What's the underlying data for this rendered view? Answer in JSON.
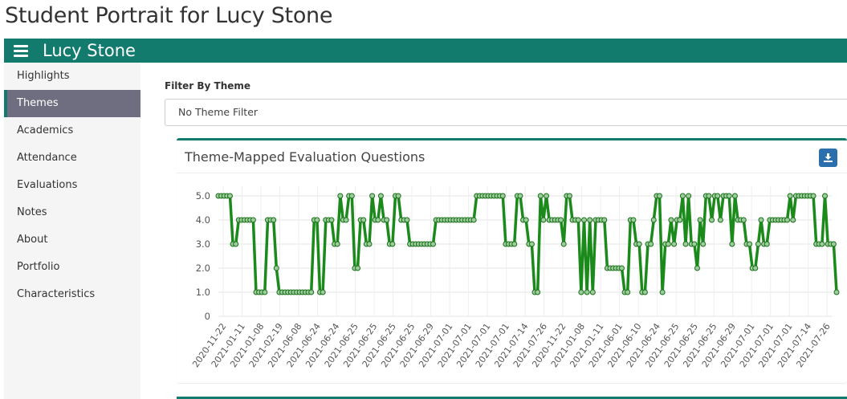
{
  "page": {
    "title": "Student Portrait for Lucy Stone"
  },
  "topbar": {
    "student_name": "Lucy Stone",
    "menu_icon": "hamburger-icon",
    "color": "#127b6e"
  },
  "sidebar": {
    "items": [
      {
        "label": "Highlights",
        "active": false
      },
      {
        "label": "Themes",
        "active": true
      },
      {
        "label": "Academics",
        "active": false
      },
      {
        "label": "Attendance",
        "active": false
      },
      {
        "label": "Evaluations",
        "active": false
      },
      {
        "label": "Notes",
        "active": false
      },
      {
        "label": "About",
        "active": false
      },
      {
        "label": "Portfolio",
        "active": false
      },
      {
        "label": "Characteristics",
        "active": false
      }
    ]
  },
  "filter": {
    "label": "Filter By Theme",
    "selected": "No Theme Filter"
  },
  "panel": {
    "title": "Theme-Mapped Evaluation Questions",
    "download_icon": "download-icon"
  },
  "chart_data": {
    "type": "line",
    "title": "",
    "xlabel": "",
    "ylabel": "",
    "ylim": [
      0,
      5.4
    ],
    "yticks": [
      "0",
      "1.0",
      "2.0",
      "3.0",
      "4.0",
      "5.0"
    ],
    "line_color": "#1a8a1a",
    "x_tick_labels": [
      "2020-11-22",
      "2021-01-11",
      "2021-01-08",
      "2021-02-19",
      "2021-06-08",
      "2021-06-24",
      "2021-06-24",
      "2021-06-25",
      "2021-06-25",
      "2021-06-25",
      "2021-06-25",
      "2021-06-29",
      "2021-07-01",
      "2021-07-01",
      "2021-07-01",
      "2021-07-01",
      "2021-07-14",
      "2021-07-26",
      "2020-11-22",
      "2021-01-08",
      "2021-01-11",
      "2021-06-01",
      "2021-06-10",
      "2021-06-24",
      "2021-06-25",
      "2021-06-25",
      "2021-06-25",
      "2021-06-29",
      "2021-07-01",
      "2021-07-01",
      "2021-07-01",
      "2021-07-14",
      "2021-07-26"
    ],
    "values": [
      5,
      5,
      5,
      5,
      5,
      3,
      3,
      4,
      4,
      4,
      4,
      4,
      4,
      1,
      1,
      1,
      1,
      4,
      4,
      4,
      2,
      1,
      1,
      1,
      1,
      1,
      1,
      1,
      1,
      1,
      1,
      1,
      1,
      4,
      4,
      1,
      1,
      4,
      4,
      4,
      3,
      3,
      5,
      4,
      4,
      5,
      5,
      2,
      2,
      4,
      4,
      3,
      3,
      5,
      4,
      4,
      5,
      4,
      4,
      3,
      3,
      5,
      5,
      4,
      4,
      4,
      3,
      3,
      3,
      3,
      3,
      3,
      3,
      3,
      3,
      4,
      4,
      4,
      4,
      4,
      4,
      4,
      4,
      4,
      4,
      4,
      4,
      4,
      4,
      5,
      5,
      5,
      5,
      5,
      5,
      5,
      5,
      5,
      5,
      3,
      3,
      3,
      3,
      5,
      5,
      4,
      4,
      3,
      3,
      1,
      1,
      5,
      4,
      5,
      4,
      4,
      4,
      4,
      4,
      3,
      5,
      5,
      4,
      4,
      4,
      1,
      4,
      1,
      4,
      1,
      4,
      4,
      4,
      4,
      2,
      2,
      2,
      2,
      2,
      2,
      1,
      1,
      4,
      4,
      3,
      3,
      1,
      1,
      3,
      3,
      4,
      5,
      5,
      1,
      3,
      3,
      4,
      3,
      4,
      4,
      5,
      3,
      5,
      3,
      3,
      2,
      4,
      3,
      5,
      5,
      4,
      5,
      5,
      4,
      5,
      5,
      5,
      3,
      5,
      4,
      4,
      4,
      3,
      3,
      2,
      2,
      3,
      4,
      3,
      3,
      4,
      4,
      4,
      4,
      4,
      4,
      4,
      5,
      4,
      5,
      5,
      5,
      5,
      5,
      5,
      5,
      3,
      3,
      3,
      5,
      3,
      3,
      3,
      1
    ]
  }
}
